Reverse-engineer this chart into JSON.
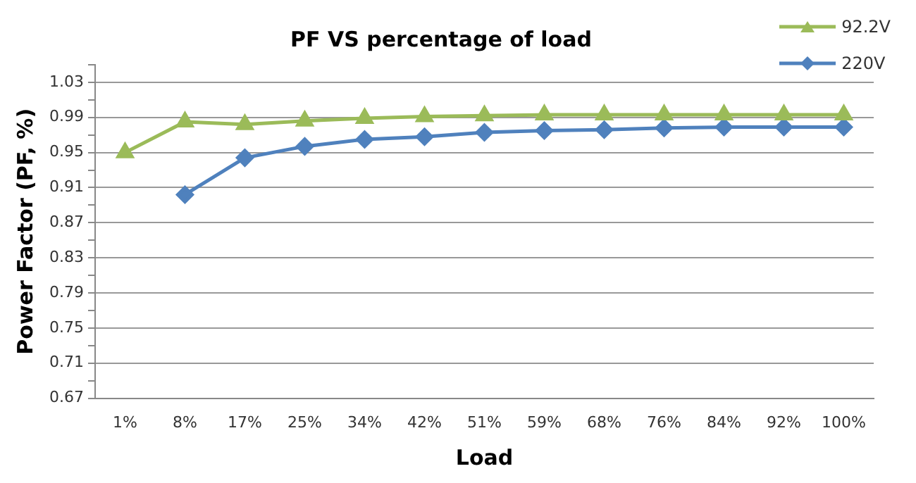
{
  "chart_data": {
    "type": "line",
    "title": "PF VS percentage of load",
    "xlabel": "Load",
    "ylabel": "Power Factor (PF, %)",
    "categories": [
      "1%",
      "8%",
      "17%",
      "25%",
      "34%",
      "42%",
      "51%",
      "59%",
      "68%",
      "76%",
      "84%",
      "92%",
      "100%"
    ],
    "series": [
      {
        "name": "92.2V",
        "color": "#9bbb59",
        "marker": "triangle",
        "values": [
          0.95,
          0.985,
          0.982,
          0.986,
          0.989,
          0.991,
          0.992,
          0.993,
          0.993,
          0.993,
          0.993,
          0.993,
          0.993
        ]
      },
      {
        "name": "220V",
        "color": "#4f81bd",
        "marker": "diamond",
        "values": [
          null,
          0.902,
          0.944,
          0.957,
          0.965,
          0.968,
          0.973,
          0.975,
          0.976,
          0.978,
          0.979,
          0.979,
          0.979
        ]
      }
    ],
    "ylim": [
      0.67,
      1.05
    ],
    "yticks": [
      0.67,
      {
        "value": 0.69,
        "label": null
      },
      0.71,
      {
        "value": 0.73,
        "label": null
      },
      0.75,
      {
        "value": 0.77,
        "label": null
      },
      0.79,
      {
        "value": 0.81,
        "label": null
      },
      0.83,
      {
        "value": 0.85,
        "label": null
      },
      0.87,
      {
        "value": 0.89,
        "label": null
      },
      0.91,
      {
        "value": 0.93,
        "label": null
      },
      0.95,
      {
        "value": 0.97,
        "label": null
      },
      0.99,
      {
        "value": 1.01,
        "label": null
      },
      1.03,
      {
        "value": 1.05,
        "label": null
      }
    ],
    "grid": "y",
    "legend": "top right",
    "line_style": "solid"
  }
}
